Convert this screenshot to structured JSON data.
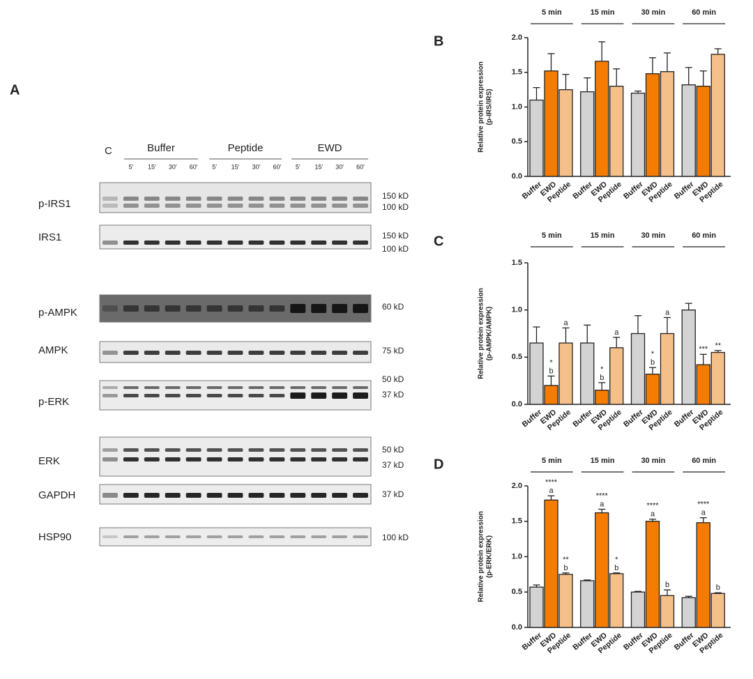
{
  "blot": {
    "panel": "A",
    "control": "C",
    "groups": [
      {
        "name": "Buffer",
        "times": [
          "5′",
          "15′",
          "30′",
          "60′"
        ]
      },
      {
        "name": "Peptide",
        "times": [
          "5′",
          "15′",
          "30′",
          "60′"
        ]
      },
      {
        "name": "EWD",
        "times": [
          "5′",
          "15′",
          "30′",
          "60′"
        ]
      }
    ],
    "rows": [
      {
        "label": "p-IRS1",
        "markers": [
          "150 kD",
          "100 kD"
        ]
      },
      {
        "label": "IRS1",
        "markers": [
          "150 kD",
          "100 kD"
        ]
      },
      {
        "label": "p-AMPK",
        "markers": [
          "60 kD"
        ]
      },
      {
        "label": "AMPK",
        "markers": [
          "75 kD"
        ]
      },
      {
        "label": "p-ERK",
        "markers": [
          "50 kD",
          "37 kD"
        ]
      },
      {
        "label": "ERK",
        "markers": [
          "50 kD",
          "37 kD"
        ]
      },
      {
        "label": "GAPDH",
        "markers": [
          "37 kD"
        ]
      },
      {
        "label": "HSP90",
        "markers": [
          "100 kD"
        ]
      }
    ]
  },
  "chart_data": [
    {
      "type": "bar",
      "panel": "B",
      "groups": [
        "5 min",
        "15 min",
        "30 min",
        "60 min"
      ],
      "ylabel": [
        "Relative protein expression",
        "(p-IRS/IRS)"
      ],
      "ylim": [
        0,
        2
      ],
      "yticks": [
        {
          "value": 0,
          "label": "0.0"
        },
        0.5,
        {
          "value": 1,
          "label": "1.0"
        },
        1.5,
        {
          "value": 2,
          "label": "2.0"
        }
      ],
      "series": [
        {
          "name": "Buffer",
          "color": "#d3d3d3",
          "values": [
            1.1,
            1.22,
            1.2,
            1.32
          ],
          "errors": [
            0.18,
            0.2,
            0.03,
            0.25
          ]
        },
        {
          "name": "EWD",
          "color": "#f57c00",
          "values": [
            1.52,
            1.66,
            1.48,
            1.3
          ],
          "errors": [
            0.25,
            0.28,
            0.23,
            0.22
          ]
        },
        {
          "name": "Peptide",
          "color": "#f5bf8a",
          "values": [
            1.25,
            1.3,
            1.51,
            1.76
          ],
          "errors": [
            0.22,
            0.25,
            0.27,
            0.08
          ]
        }
      ],
      "annotations": []
    },
    {
      "type": "bar",
      "panel": "C",
      "groups": [
        "5 min",
        "15 min",
        "30 min",
        "60 min"
      ],
      "ylabel": [
        "Relative protein expression",
        "(p-AMPK/AMPK)"
      ],
      "ylim": [
        0,
        1.5
      ],
      "yticks": [
        {
          "value": 0,
          "label": "0.0"
        },
        0.5,
        {
          "value": 1,
          "label": "1.0"
        },
        1.5
      ],
      "series": [
        {
          "name": "Buffer",
          "color": "#d3d3d3",
          "values": [
            0.65,
            0.65,
            0.75,
            1.0
          ],
          "errors": [
            0.17,
            0.19,
            0.19,
            0.07
          ]
        },
        {
          "name": "EWD",
          "color": "#f57c00",
          "values": [
            0.2,
            0.15,
            0.32,
            0.42
          ],
          "errors": [
            0.1,
            0.08,
            0.07,
            0.11
          ]
        },
        {
          "name": "Peptide",
          "color": "#f5bf8a",
          "values": [
            0.65,
            0.6,
            0.75,
            0.55
          ],
          "errors": [
            0.16,
            0.11,
            0.17,
            0.02
          ]
        }
      ],
      "annotations": [
        {
          "series": 1,
          "group": 0,
          "lines": [
            "*",
            "b"
          ]
        },
        {
          "series": 2,
          "group": 0,
          "lines": [
            "a"
          ]
        },
        {
          "series": 1,
          "group": 1,
          "lines": [
            "*",
            "b"
          ]
        },
        {
          "series": 2,
          "group": 1,
          "lines": [
            "a"
          ]
        },
        {
          "series": 1,
          "group": 2,
          "lines": [
            "*",
            "b"
          ]
        },
        {
          "series": 2,
          "group": 2,
          "lines": [
            "a"
          ]
        },
        {
          "series": 1,
          "group": 3,
          "lines": [
            "***"
          ]
        },
        {
          "series": 2,
          "group": 3,
          "lines": [
            "**"
          ]
        }
      ]
    },
    {
      "type": "bar",
      "panel": "D",
      "groups": [
        "5 min",
        "15 min",
        "30 min",
        "60 min"
      ],
      "ylabel": [
        "Relative protein expression",
        "(p-ERK/ERK)"
      ],
      "ylim": [
        0,
        2
      ],
      "yticks": [
        {
          "value": 0,
          "label": "0.0"
        },
        0.5,
        {
          "value": 1,
          "label": "1.0"
        },
        1.5,
        {
          "value": 2,
          "label": "2.0"
        }
      ],
      "series": [
        {
          "name": "Buffer",
          "color": "#d3d3d3",
          "values": [
            0.57,
            0.66,
            0.5,
            0.42
          ],
          "errors": [
            0.03,
            0.01,
            0.01,
            0.02
          ]
        },
        {
          "name": "EWD",
          "color": "#f57c00",
          "values": [
            1.8,
            1.62,
            1.5,
            1.48
          ],
          "errors": [
            0.06,
            0.05,
            0.03,
            0.07
          ]
        },
        {
          "name": "Peptide",
          "color": "#f5bf8a",
          "values": [
            0.75,
            0.76,
            0.45,
            0.48
          ],
          "errors": [
            0.02,
            0.01,
            0.08,
            0.01
          ]
        }
      ],
      "annotations": [
        {
          "series": 1,
          "group": 0,
          "lines": [
            "****",
            "a"
          ]
        },
        {
          "series": 2,
          "group": 0,
          "lines": [
            "**",
            "b"
          ]
        },
        {
          "series": 1,
          "group": 1,
          "lines": [
            "****",
            "a"
          ]
        },
        {
          "series": 2,
          "group": 1,
          "lines": [
            "*",
            "b"
          ]
        },
        {
          "series": 1,
          "group": 2,
          "lines": [
            "****",
            "a"
          ]
        },
        {
          "series": 2,
          "group": 2,
          "lines": [
            "b"
          ]
        },
        {
          "series": 1,
          "group": 3,
          "lines": [
            "****",
            "a"
          ]
        },
        {
          "series": 2,
          "group": 3,
          "lines": [
            "b"
          ]
        }
      ]
    }
  ]
}
